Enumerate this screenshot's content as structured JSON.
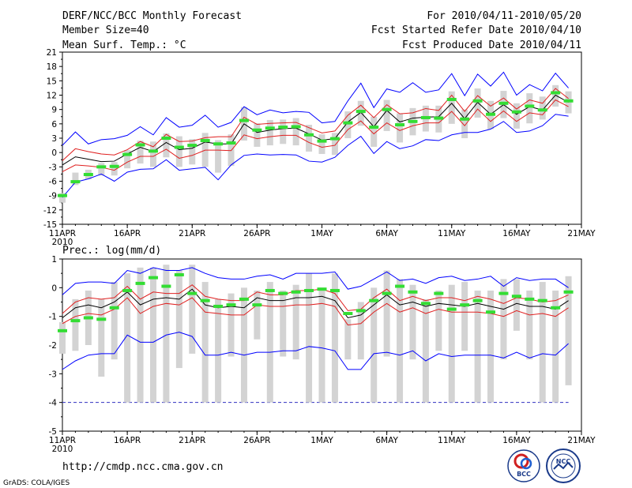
{
  "header": {
    "title": "DERF/NCC/BCC Monthly Forecast",
    "member_size": "Member Size=40",
    "variable": "Mean Surf. Temp.: °C",
    "period": "For 2010/04/11-2010/05/20",
    "fcst_started": "Fcst Started Refer Date 2010/04/10",
    "fcst_produced": "Fcst Produced Date 2010/04/11"
  },
  "footer": {
    "url": "http://cmdp.ncc.cma.gov.cn",
    "grads": "GrADS: COLA/IGES",
    "logo_bcc": "BCC",
    "logo_ncc": "NCC"
  },
  "colors": {
    "box": "#d3d3d3",
    "ens_mean": "#000000",
    "spread": "#e02020",
    "extreme": "#0000ff",
    "obs": "#33dd33",
    "missing": "#3030c0"
  },
  "chart_data": [
    {
      "type": "line",
      "name": "temperature",
      "title": "Mean Surf. Temp.: °C",
      "ylabel": "°C",
      "ylim": [
        -15,
        21
      ],
      "yticks": [
        "21",
        "18",
        "15",
        "12",
        "9",
        "6",
        "3",
        "0",
        "-3",
        "-6",
        "-9",
        "-12",
        "-15"
      ],
      "xlim": [
        0,
        40
      ],
      "xticks": [
        {
          "day": 0,
          "label": "11APR",
          "sub": "2010"
        },
        {
          "day": 5,
          "label": "16APR"
        },
        {
          "day": 10,
          "label": "21APR"
        },
        {
          "day": 15,
          "label": "26APR"
        },
        {
          "day": 20,
          "label": "1MAY"
        },
        {
          "day": 25,
          "label": "6MAY"
        },
        {
          "day": 30,
          "label": "11MAY"
        },
        {
          "day": 35,
          "label": "16MAY"
        },
        {
          "day": 40,
          "label": "21MAY"
        }
      ],
      "days": [
        0,
        1,
        2,
        3,
        4,
        5,
        6,
        7,
        8,
        9,
        10,
        11,
        12,
        13,
        14,
        15,
        16,
        17,
        18,
        19,
        20,
        21,
        22,
        23,
        24,
        25,
        26,
        27,
        28,
        29,
        30,
        31,
        32,
        33,
        34,
        35,
        36,
        37,
        38,
        39
      ],
      "series": [
        {
          "name": "max",
          "values": [
            1.5,
            4.3,
            1.8,
            2.7,
            2.9,
            3.6,
            5.4,
            3.7,
            7.3,
            5.3,
            5.7,
            7.8,
            5.3,
            6.3,
            9.6,
            7.9,
            8.9,
            8.3,
            8.6,
            8.4,
            6.2,
            6.5,
            10.8,
            14.5,
            9.4,
            13.3,
            12.6,
            14.6,
            12.6,
            13.1,
            16.5,
            11.9,
            16.4,
            13.9,
            16.8,
            12.0,
            14.2,
            12.9,
            16.6,
            13.5
          ]
        },
        {
          "name": "upper",
          "values": [
            -1.7,
            0.8,
            0.2,
            -0.3,
            -0.5,
            0.6,
            2.3,
            1.2,
            3.8,
            2.3,
            2.4,
            3.1,
            3.3,
            3.3,
            7.4,
            5.9,
            6.1,
            6.2,
            6.3,
            5.2,
            4.1,
            4.5,
            7.8,
            9.9,
            7.3,
            10.0,
            8.1,
            8.3,
            9.2,
            8.8,
            12.0,
            8.6,
            11.9,
            9.7,
            11.4,
            9.1,
            11.0,
            10.3,
            13.4,
            11.3
          ]
        },
        {
          "name": "mean",
          "values": [
            -2.6,
            -0.9,
            -1.4,
            -1.9,
            -1.8,
            -0.3,
            1.1,
            0.2,
            2.1,
            0.6,
            0.9,
            2.2,
            1.8,
            1.8,
            6.0,
            4.2,
            4.7,
            5.0,
            5.1,
            3.9,
            2.6,
            2.9,
            6.4,
            8.4,
            5.4,
            8.8,
            6.4,
            7.2,
            7.4,
            7.5,
            10.3,
            7.1,
            10.5,
            8.0,
            10.0,
            8.0,
            9.6,
            8.9,
            12.0,
            10.5
          ]
        },
        {
          "name": "lower",
          "values": [
            -4.0,
            -2.6,
            -2.8,
            -3.1,
            -3.7,
            -2.0,
            -0.8,
            -0.8,
            0.7,
            -1.2,
            -0.6,
            0.5,
            0.5,
            0.4,
            3.7,
            2.9,
            3.3,
            3.6,
            3.6,
            2.1,
            1.1,
            1.5,
            4.8,
            6.6,
            3.9,
            6.2,
            4.6,
            5.6,
            6.2,
            6.2,
            8.6,
            5.6,
            9.1,
            6.5,
            8.7,
            6.5,
            8.3,
            7.9,
            11.0,
            9.6
          ]
        },
        {
          "name": "min",
          "values": [
            -9.4,
            -6.2,
            -5.5,
            -4.5,
            -6.0,
            -4.1,
            -3.5,
            -3.4,
            -1.5,
            -3.7,
            -3.4,
            -3.1,
            -5.7,
            -2.6,
            -0.6,
            -0.3,
            -0.5,
            -0.4,
            -0.5,
            -1.8,
            -2.0,
            -1.0,
            1.5,
            3.4,
            -0.2,
            2.3,
            0.8,
            1.4,
            2.7,
            2.5,
            3.7,
            4.2,
            4.2,
            4.9,
            6.5,
            4.2,
            4.5,
            5.6,
            8.0,
            7.6
          ]
        }
      ],
      "box_low": [
        -10.5,
        -6.8,
        -5.6,
        -4.8,
        -4.8,
        -3.3,
        -2.3,
        -3.0,
        -1.0,
        -3.0,
        -2.5,
        -3.0,
        -4.2,
        -2.8,
        2.5,
        1.2,
        1.5,
        1.8,
        1.5,
        0.2,
        -0.3,
        -0.5,
        3.0,
        5.6,
        1.2,
        4.5,
        2.1,
        3.6,
        4.4,
        4.2,
        6.0,
        3.0,
        7.3,
        4.9,
        7.2,
        5.0,
        6.1,
        6.9,
        9.6,
        8.2
      ],
      "box_high": [
        -8.5,
        -4.2,
        -3.6,
        -2.2,
        -2.0,
        0.5,
        2.5,
        2.3,
        4.0,
        3.4,
        2.8,
        4.1,
        2.6,
        3.8,
        9.5,
        6.1,
        6.8,
        6.9,
        7.2,
        5.8,
        3.8,
        4.1,
        8.6,
        10.8,
        7.5,
        11.0,
        8.2,
        9.3,
        9.8,
        9.8,
        12.8,
        9.0,
        13.4,
        10.8,
        12.9,
        10.3,
        12.4,
        11.7,
        14.1,
        12.8
      ],
      "obs": [
        -9.0,
        -6.1,
        -4.6,
        -3.0,
        -2.9,
        -0.4,
        1.6,
        0.3,
        3.0,
        1.1,
        1.5,
        2.5,
        1.8,
        2.0,
        6.7,
        4.7,
        5.1,
        5.3,
        5.4,
        3.7,
        2.4,
        2.9,
        6.2,
        8.6,
        5.3,
        9.0,
        5.8,
        6.5,
        7.3,
        7.2,
        11.1,
        7.0,
        10.8,
        8.0,
        10.3,
        8.5,
        9.7,
        8.9,
        12.5,
        10.8
      ]
    },
    {
      "type": "line",
      "name": "precipitation",
      "title": "Prec.: log(mm/d)",
      "ylabel": "log(mm/d)",
      "ylim": [
        -5,
        1
      ],
      "yticks": [
        "1",
        "0",
        "-1",
        "-2",
        "-3",
        "-4",
        "-5"
      ],
      "xlim": [
        0,
        40
      ],
      "xticks": [
        {
          "day": 0,
          "label": "11APR",
          "sub": "2010"
        },
        {
          "day": 5,
          "label": "16APR"
        },
        {
          "day": 10,
          "label": "21APR"
        },
        {
          "day": 15,
          "label": "26APR"
        },
        {
          "day": 20,
          "label": "1MAY"
        },
        {
          "day": 25,
          "label": "6MAY"
        },
        {
          "day": 30,
          "label": "11MAY"
        },
        {
          "day": 35,
          "label": "16MAY"
        },
        {
          "day": 40,
          "label": "21MAY"
        }
      ],
      "days": [
        0,
        1,
        2,
        3,
        4,
        5,
        6,
        7,
        8,
        9,
        10,
        11,
        12,
        13,
        14,
        15,
        16,
        17,
        18,
        19,
        20,
        21,
        22,
        23,
        24,
        25,
        26,
        27,
        28,
        29,
        30,
        31,
        32,
        33,
        34,
        35,
        36,
        37,
        38,
        39
      ],
      "missing_level": -4,
      "series": [
        {
          "name": "max",
          "values": [
            -0.25,
            0.15,
            0.2,
            0.2,
            0.15,
            0.6,
            0.5,
            0.7,
            0.6,
            0.6,
            0.7,
            0.5,
            0.35,
            0.3,
            0.3,
            0.4,
            0.45,
            0.3,
            0.5,
            0.5,
            0.5,
            0.55,
            -0.05,
            0.05,
            0.3,
            0.55,
            0.25,
            0.3,
            0.15,
            0.35,
            0.4,
            0.25,
            0.3,
            0.4,
            0.05,
            0.35,
            0.25,
            0.3,
            0.3,
            0.0
          ]
        },
        {
          "name": "upper",
          "values": [
            -0.9,
            -0.5,
            -0.35,
            -0.4,
            -0.35,
            0.05,
            -0.4,
            -0.15,
            -0.2,
            -0.2,
            0.1,
            -0.3,
            -0.4,
            -0.45,
            -0.45,
            -0.15,
            -0.25,
            -0.25,
            -0.1,
            -0.1,
            -0.05,
            -0.2,
            -0.8,
            -0.75,
            -0.35,
            -0.05,
            -0.45,
            -0.3,
            -0.45,
            -0.35,
            -0.35,
            -0.45,
            -0.3,
            -0.4,
            -0.55,
            -0.35,
            -0.4,
            -0.5,
            -0.45,
            -0.25
          ]
        },
        {
          "name": "mean",
          "values": [
            -1.05,
            -0.7,
            -0.6,
            -0.7,
            -0.5,
            -0.15,
            -0.6,
            -0.4,
            -0.35,
            -0.4,
            -0.05,
            -0.6,
            -0.7,
            -0.65,
            -0.7,
            -0.35,
            -0.45,
            -0.45,
            -0.35,
            -0.35,
            -0.3,
            -0.45,
            -1.05,
            -0.95,
            -0.6,
            -0.25,
            -0.6,
            -0.5,
            -0.65,
            -0.55,
            -0.6,
            -0.65,
            -0.55,
            -0.65,
            -0.75,
            -0.55,
            -0.65,
            -0.65,
            -0.75,
            -0.45
          ]
        },
        {
          "name": "lower",
          "values": [
            -1.25,
            -1.0,
            -0.9,
            -0.95,
            -0.75,
            -0.35,
            -0.9,
            -0.65,
            -0.55,
            -0.6,
            -0.35,
            -0.85,
            -0.9,
            -0.95,
            -0.95,
            -0.6,
            -0.65,
            -0.65,
            -0.6,
            -0.6,
            -0.55,
            -0.65,
            -1.3,
            -1.25,
            -0.85,
            -0.55,
            -0.85,
            -0.7,
            -0.9,
            -0.75,
            -0.85,
            -0.85,
            -0.85,
            -0.9,
            -1.0,
            -0.8,
            -0.95,
            -0.9,
            -1.0,
            -0.7
          ]
        },
        {
          "name": "min",
          "values": [
            -2.85,
            -2.55,
            -2.35,
            -2.3,
            -2.3,
            -1.65,
            -1.9,
            -1.9,
            -1.65,
            -1.55,
            -1.7,
            -2.35,
            -2.35,
            -2.25,
            -2.35,
            -2.25,
            -2.25,
            -2.2,
            -2.2,
            -2.05,
            -2.1,
            -2.2,
            -2.85,
            -2.85,
            -2.3,
            -2.25,
            -2.35,
            -2.2,
            -2.55,
            -2.3,
            -2.4,
            -2.35,
            -2.35,
            -2.35,
            -2.45,
            -2.25,
            -2.45,
            -2.3,
            -2.35,
            -1.95
          ]
        }
      ],
      "box_low": [
        -2.3,
        -2.2,
        -2.0,
        -3.1,
        -2.5,
        -4.0,
        -4.0,
        -4.0,
        -4.0,
        -2.8,
        -2.3,
        -4.0,
        -4.0,
        -2.4,
        -4.0,
        -1.8,
        -4.0,
        -2.4,
        -2.5,
        -4.0,
        -4.0,
        -4.0,
        -2.5,
        -2.5,
        -4.0,
        -2.4,
        -4.0,
        -2.5,
        -4.0,
        -2.2,
        -4.0,
        -2.2,
        -4.0,
        -4.0,
        -2.5,
        -1.5,
        -2.5,
        -4.0,
        -4.0,
        -3.4
      ],
      "box_high": [
        -1.2,
        -0.4,
        -0.1,
        -0.4,
        0.2,
        0.5,
        0.7,
        0.7,
        0.8,
        0.6,
        0.8,
        0.2,
        -0.4,
        -0.2,
        0.0,
        -0.1,
        0.2,
        -0.1,
        0.1,
        0.5,
        0.0,
        0.5,
        -1.1,
        -0.5,
        0.0,
        0.6,
        0.3,
        0.1,
        -0.4,
        -0.1,
        0.1,
        0.2,
        -0.1,
        -0.1,
        0.3,
        0.3,
        -0.1,
        0.2,
        -0.1,
        0.4
      ],
      "obs": [
        -1.5,
        -1.15,
        -1.05,
        -1.1,
        -0.7,
        -0.1,
        0.15,
        0.35,
        0.05,
        0.45,
        -0.2,
        -0.45,
        -0.65,
        -0.6,
        -0.4,
        -0.6,
        -0.1,
        -0.2,
        -0.15,
        -0.1,
        -0.05,
        -0.1,
        -0.9,
        -0.8,
        -0.45,
        -0.2,
        0.05,
        -0.15,
        -0.55,
        -0.2,
        -0.75,
        -0.6,
        -0.45,
        -0.85,
        -0.2,
        -0.3,
        -0.4,
        -0.45,
        -0.7,
        -0.15
      ]
    }
  ]
}
